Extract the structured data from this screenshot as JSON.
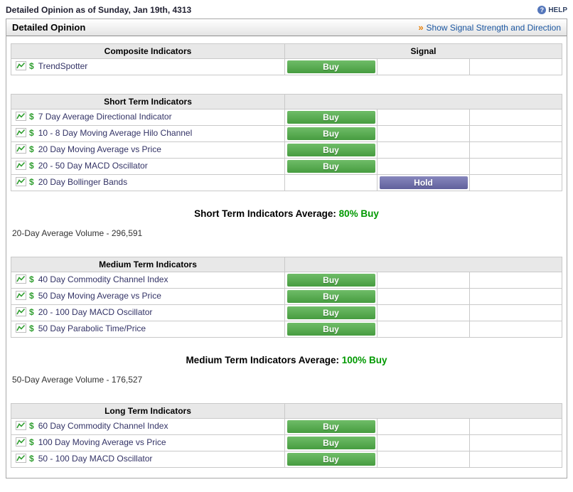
{
  "page": {
    "title": "Detailed Opinion as of Sunday, Jan 19th, 4313",
    "help": {
      "label": "HELP",
      "icon": "question-circle-icon",
      "icon_glyph": "?"
    }
  },
  "panel": {
    "title": "Detailed Opinion",
    "link": {
      "arrow": "»",
      "label": "Show Signal Strength and Direction"
    }
  },
  "colors": {
    "buy_button": "#4fae47",
    "hold_button": "#6c6cae",
    "average_value_text": "#009900",
    "link_text": "#1b56a0",
    "arrow_orange": "#e8820c"
  },
  "row_icons": [
    "chart-icon",
    "dollar-icon"
  ],
  "signal_columns": [
    "buy",
    "hold",
    "sell"
  ],
  "sections": [
    {
      "header": "Composite Indicators",
      "signal_header": "Signal",
      "rows": [
        {
          "name": "TrendSpotter",
          "signal": "Buy",
          "column": 1
        }
      ]
    },
    {
      "header": "Short Term Indicators",
      "signal_header": "",
      "rows": [
        {
          "name": "7 Day Average Directional Indicator",
          "signal": "Buy",
          "column": 1
        },
        {
          "name": "10 - 8 Day Moving Average Hilo Channel",
          "signal": "Buy",
          "column": 1
        },
        {
          "name": "20 Day Moving Average vs Price",
          "signal": "Buy",
          "column": 1
        },
        {
          "name": "20 - 50 Day MACD Oscillator",
          "signal": "Buy",
          "column": 1
        },
        {
          "name": "20 Day Bollinger Bands",
          "signal": "Hold",
          "column": 2
        }
      ],
      "average": {
        "label": "Short Term Indicators Average:",
        "value": "80% Buy"
      },
      "volume": "20-Day Average Volume - 296,591"
    },
    {
      "header": "Medium Term Indicators",
      "signal_header": "",
      "rows": [
        {
          "name": "40 Day Commodity Channel Index",
          "signal": "Buy",
          "column": 1
        },
        {
          "name": "50 Day Moving Average vs Price",
          "signal": "Buy",
          "column": 1
        },
        {
          "name": "20 - 100 Day MACD Oscillator",
          "signal": "Buy",
          "column": 1
        },
        {
          "name": "50 Day Parabolic Time/Price",
          "signal": "Buy",
          "column": 1
        }
      ],
      "average": {
        "label": "Medium Term Indicators Average:",
        "value": "100% Buy"
      },
      "volume": "50-Day Average Volume - 176,527"
    },
    {
      "header": "Long Term Indicators",
      "signal_header": "",
      "rows": [
        {
          "name": "60 Day Commodity Channel Index",
          "signal": "Buy",
          "column": 1
        },
        {
          "name": "100 Day Moving Average vs Price",
          "signal": "Buy",
          "column": 1
        },
        {
          "name": "50 - 100 Day MACD Oscillator",
          "signal": "Buy",
          "column": 1
        }
      ]
    }
  ]
}
